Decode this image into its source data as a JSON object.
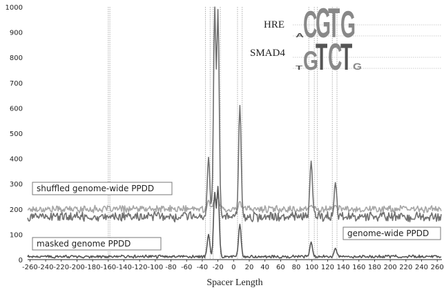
{
  "chart_data": {
    "type": "line",
    "title": "",
    "xlabel": "Spacer Length",
    "ylabel": "",
    "xlim": [
      -263,
      266
    ],
    "ylim": [
      0,
      1000
    ],
    "x_ticks": [
      -260,
      -240,
      -220,
      -200,
      -180,
      -160,
      -140,
      -120,
      -100,
      -80,
      -60,
      -40,
      -20,
      0,
      20,
      40,
      60,
      80,
      100,
      120,
      140,
      160,
      180,
      200,
      220,
      240,
      260
    ],
    "y_ticks": [
      0,
      100,
      200,
      300,
      400,
      500,
      600,
      700,
      800,
      900,
      1000
    ],
    "grid": false,
    "series": [
      {
        "name": "shuffled genome-wide PPDD",
        "color": "#a6a6a6",
        "baseline": 200,
        "noise_amplitude": 12,
        "peaks": [
          [
            -32,
            235
          ],
          [
            -24,
            240
          ],
          [
            -20,
            250
          ],
          [
            8,
            230
          ],
          [
            99,
            215
          ],
          [
            130,
            215
          ]
        ]
      },
      {
        "name": "genome-wide PPDD",
        "color": "#707070",
        "baseline": 170,
        "noise_amplitude": 16,
        "peaks": [
          [
            -32,
            405
          ],
          [
            -24,
            1000
          ],
          [
            -20,
            990
          ],
          [
            8,
            610
          ],
          [
            99,
            390
          ],
          [
            130,
            305
          ]
        ]
      },
      {
        "name": "masked genome PPDD",
        "color": "#555555",
        "baseline": 12,
        "noise_amplitude": 5,
        "peaks": [
          [
            -32,
            100
          ],
          [
            -24,
            265
          ],
          [
            -20,
            290
          ],
          [
            8,
            140
          ],
          [
            99,
            70
          ],
          [
            130,
            45
          ]
        ]
      }
    ],
    "annotations": {
      "shuffled_label": "shuffled genome-wide PPDD",
      "genome_label": "genome-wide PPDD",
      "masked_label": "masked genome PPDD"
    },
    "reference_lines_x": [
      -160,
      -158,
      -36,
      -30,
      -26,
      -17,
      5,
      11,
      96,
      103,
      107,
      126,
      132
    ],
    "motifs": [
      {
        "label": "HRE",
        "letters": [
          "A",
          "C",
          "G",
          "T",
          "G"
        ]
      },
      {
        "label": "SMAD4",
        "letters": [
          "T",
          "G",
          "T",
          "C",
          "T",
          "G"
        ]
      }
    ]
  }
}
